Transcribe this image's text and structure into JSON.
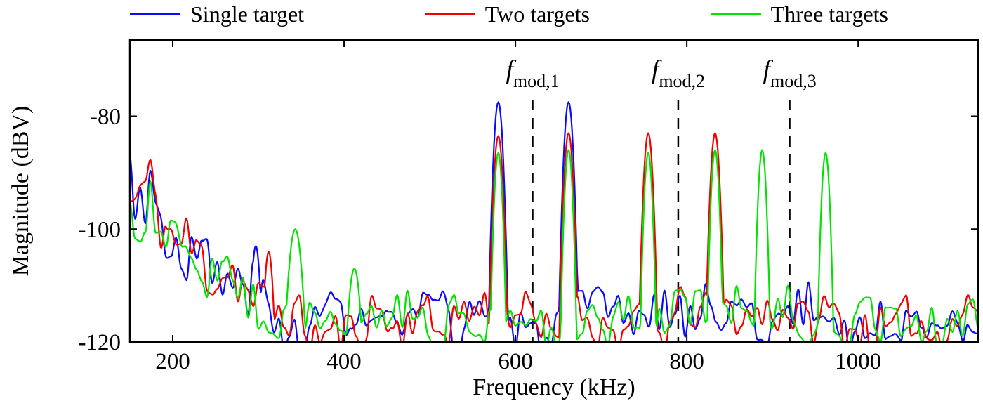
{
  "figure": {
    "background": "#ffffff"
  },
  "chart_data": {
    "type": "line",
    "title": "",
    "xlabel": "Frequency (kHz)",
    "ylabel": "Magnitude (dBV)",
    "xlim": [
      150,
      1140
    ],
    "ylim": [
      -120,
      -66.5
    ],
    "xticks": [
      200,
      400,
      600,
      800,
      1000
    ],
    "yticks": [
      -80,
      -100,
      -120
    ],
    "grid": false,
    "legend_position": "top",
    "axis_color": "#000000",
    "noise_floor_db": -116,
    "noise_amplitude_db": 5.5,
    "low_freq": {
      "start_khz": 150,
      "end_khz": 330,
      "start_level_db": -94,
      "amplitude_db": 9
    },
    "series": [
      {
        "name": "Single target",
        "color": "#0a0aff",
        "seed": 3,
        "peaks": [
          {
            "x_khz": 580,
            "y_db": -77.5,
            "halfwidth_khz": 10
          },
          {
            "x_khz": 662,
            "y_db": -77.5,
            "halfwidth_khz": 10
          },
          {
            "x_khz": 297,
            "y_db": -103,
            "halfwidth_khz": 10
          }
        ]
      },
      {
        "name": "Two targets",
        "color": "#f40000",
        "seed": 11,
        "peaks": [
          {
            "x_khz": 580,
            "y_db": -83.5,
            "halfwidth_khz": 10
          },
          {
            "x_khz": 662,
            "y_db": -83,
            "halfwidth_khz": 10
          },
          {
            "x_khz": 755,
            "y_db": -83,
            "halfwidth_khz": 10
          },
          {
            "x_khz": 833,
            "y_db": -83,
            "halfwidth_khz": 10
          },
          {
            "x_khz": 312,
            "y_db": -104,
            "halfwidth_khz": 10
          }
        ]
      },
      {
        "name": "Three targets",
        "color": "#00e400",
        "seed": 27,
        "peaks": [
          {
            "x_khz": 580,
            "y_db": -86.5,
            "halfwidth_khz": 9
          },
          {
            "x_khz": 662,
            "y_db": -86,
            "halfwidth_khz": 9
          },
          {
            "x_khz": 755,
            "y_db": -86.5,
            "halfwidth_khz": 9
          },
          {
            "x_khz": 833,
            "y_db": -86,
            "halfwidth_khz": 9
          },
          {
            "x_khz": 888,
            "y_db": -86,
            "halfwidth_khz": 9
          },
          {
            "x_khz": 962,
            "y_db": -86.5,
            "halfwidth_khz": 9
          },
          {
            "x_khz": 343,
            "y_db": -100,
            "halfwidth_khz": 15
          },
          {
            "x_khz": 412,
            "y_db": -107,
            "halfwidth_khz": 14
          }
        ]
      }
    ],
    "vlines": [
      {
        "x": 620,
        "label_main": "f",
        "label_sub": "mod,1"
      },
      {
        "x": 790,
        "label_main": "f",
        "label_sub": "mod,2"
      },
      {
        "x": 920,
        "label_main": "f",
        "label_sub": "mod,3"
      }
    ]
  }
}
